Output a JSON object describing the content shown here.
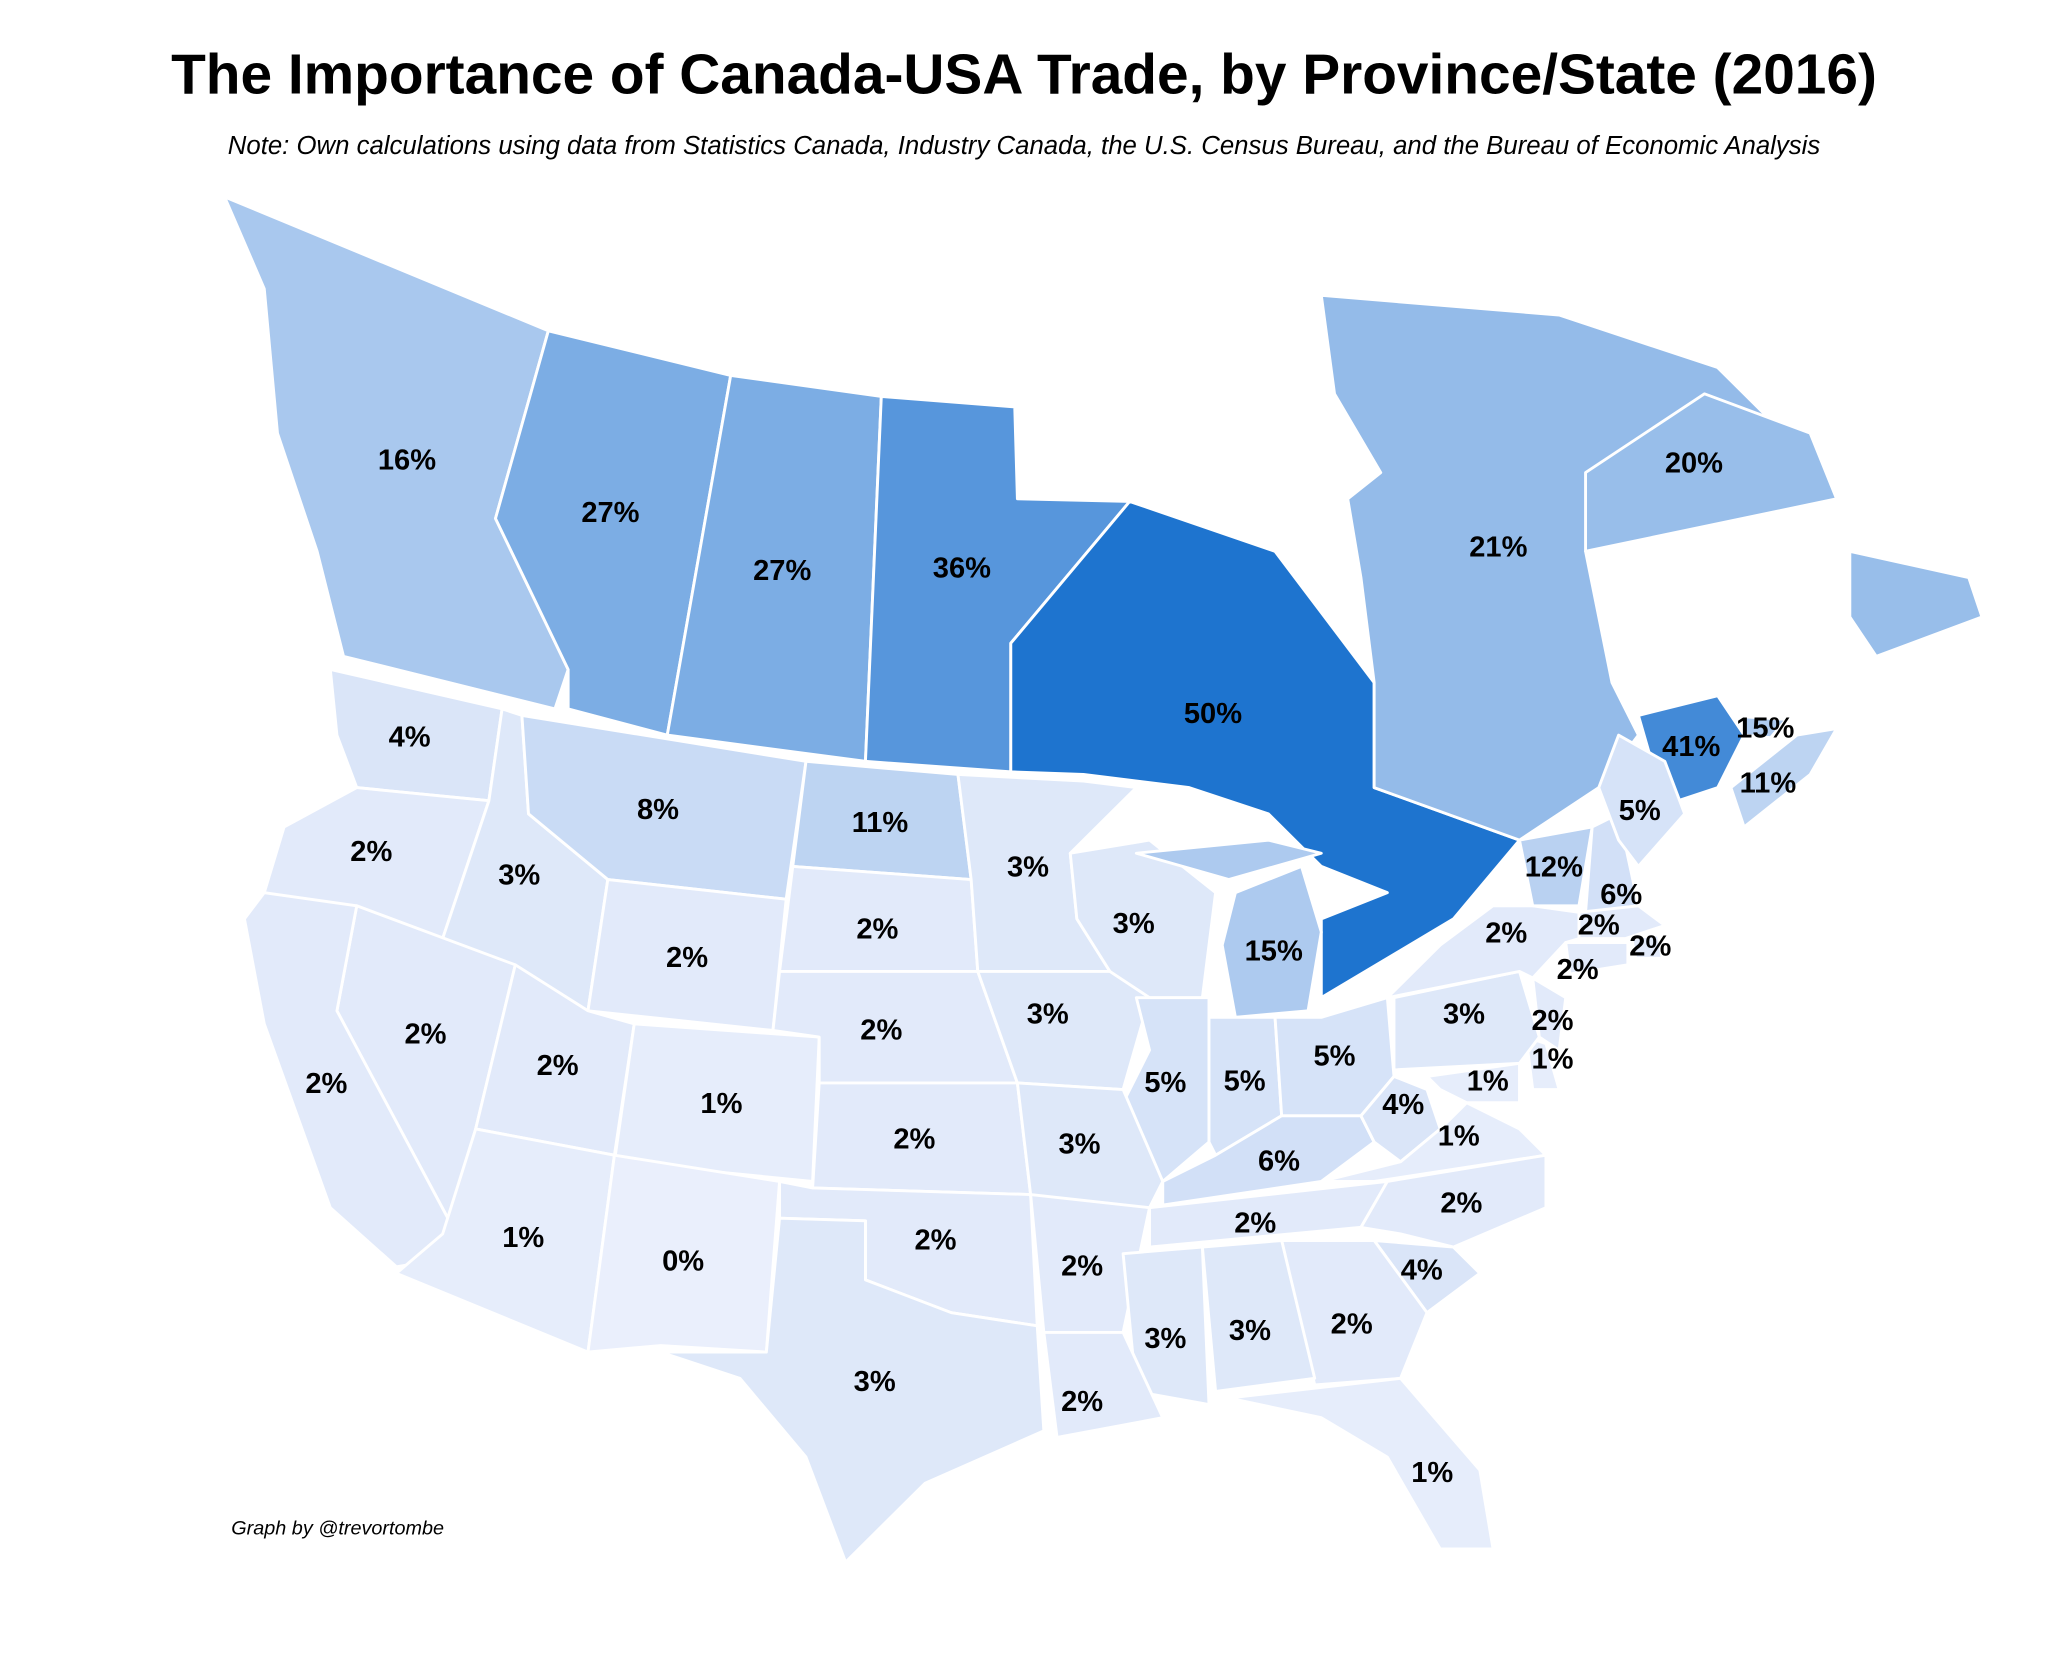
{
  "title": "The Importance of Canada-USA Trade, by Province/State (2016)",
  "note": "Note: Own calculations using data from Statistics Canada, Industry Canada, the U.S. Census Bureau, and the Bureau of Economic Analysis",
  "credit": "Graph by @trevortombe",
  "color_scale": [
    "#eaeffc",
    "#1e74cf"
  ],
  "regions": {
    "values": [
      16,
      27,
      27,
      36,
      50,
      21,
      20,
      41,
      15,
      11,
      4,
      2,
      3,
      8,
      11,
      2,
      2,
      3,
      3,
      15,
      2,
      2,
      2,
      1,
      2,
      3,
      5,
      5,
      5,
      2,
      3,
      6,
      4,
      1,
      1,
      1,
      3,
      2,
      2,
      12,
      6,
      5,
      2,
      2,
      2,
      1,
      0,
      2,
      2,
      2,
      2,
      4,
      2,
      3,
      3,
      3,
      2,
      1
    ],
    "value_labels": [
      "16%",
      "27%",
      "27%",
      "36%",
      "50%",
      "21%",
      "20%",
      "41%",
      "15%",
      "11%",
      "4%",
      "2%",
      "3%",
      "8%",
      "11%",
      "2%",
      "2%",
      "3%",
      "3%",
      "15%",
      "2%",
      "2%",
      "2%",
      "1%",
      "2%",
      "3%",
      "5%",
      "5%",
      "5%",
      "2%",
      "3%",
      "6%",
      "4%",
      "1%",
      "1%",
      "1%",
      "3%",
      "2%",
      "2%",
      "12%",
      "6%",
      "5%",
      "2%",
      "2%",
      "2%",
      "1%",
      "0%",
      "2%",
      "2%",
      "2%",
      "2%",
      "4%",
      "2%",
      "3%",
      "3%",
      "3%",
      "2%",
      "1%"
    ]
  }
}
